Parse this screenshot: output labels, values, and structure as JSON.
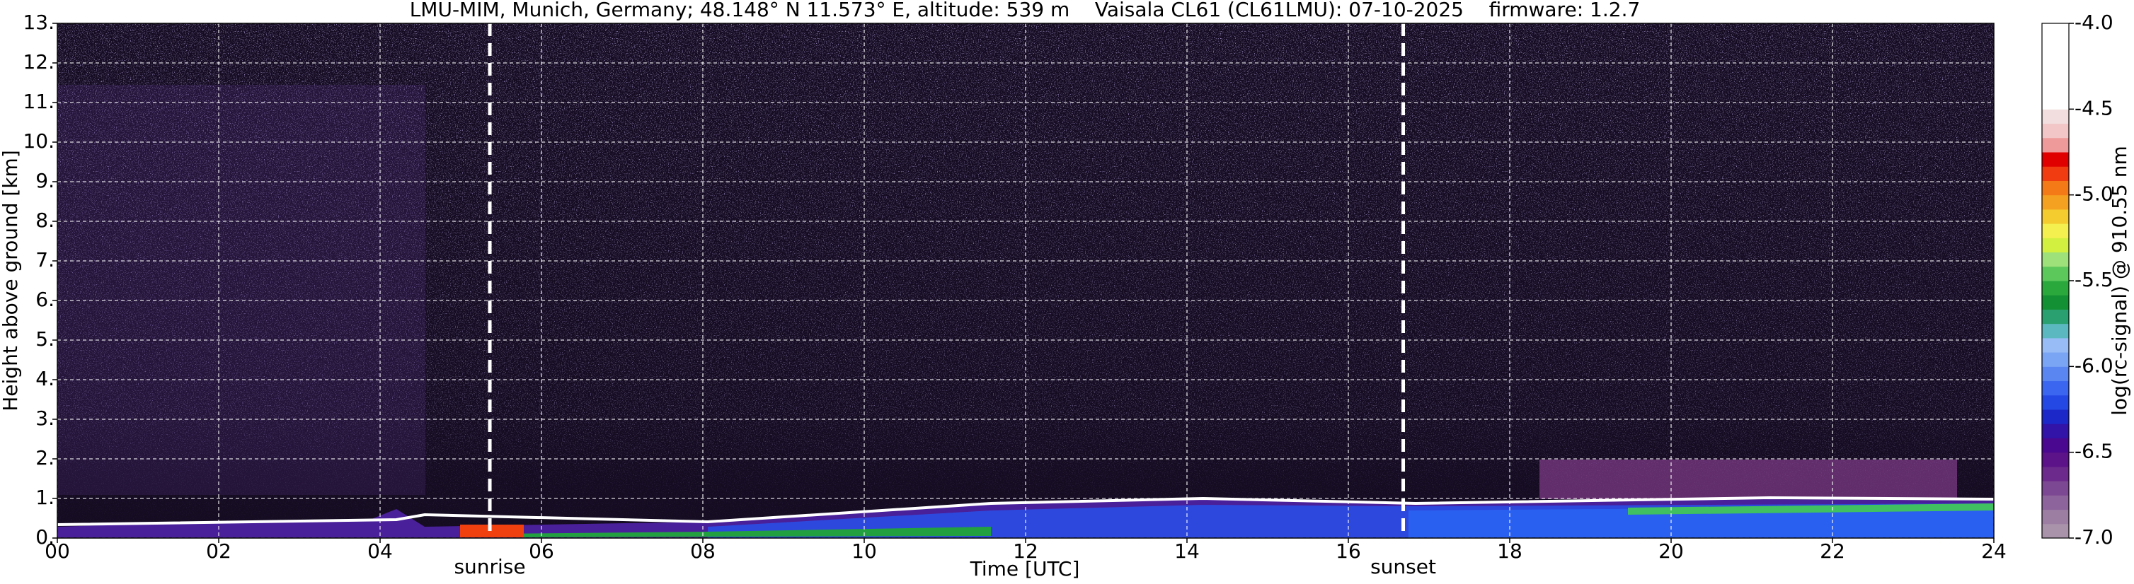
{
  "chart_data": {
    "type": "heatmap",
    "title": "LMU-MIM, Munich, Germany; 48.148° N 11.573° E, altitude: 539 m    Vaisala CL61 (CL61LMU): 07-10-2025    firmware: 1.2.7",
    "xlabel": "Time [UTC]",
    "ylabel": "Height above ground [km]",
    "xlim": [
      0,
      24
    ],
    "xticks": [
      {
        "value": 0,
        "label": "00"
      },
      {
        "value": 2,
        "label": "02"
      },
      {
        "value": 4,
        "label": "04"
      },
      {
        "value": 6,
        "label": "06"
      },
      {
        "value": 8,
        "label": "08"
      },
      10,
      12,
      14,
      16,
      18,
      20,
      22,
      24
    ],
    "ylim": [
      0,
      13
    ],
    "yticks": [
      {
        "value": 0,
        "label": "0."
      },
      {
        "value": 1,
        "label": "1."
      },
      {
        "value": 2,
        "label": "2."
      },
      {
        "value": 3,
        "label": "3."
      },
      {
        "value": 4,
        "label": "4."
      },
      {
        "value": 5,
        "label": "5."
      },
      {
        "value": 6,
        "label": "6."
      },
      {
        "value": 7,
        "label": "7."
      },
      {
        "value": 8,
        "label": "8."
      },
      {
        "value": 9,
        "label": "9."
      },
      {
        "value": 10,
        "label": "10."
      },
      {
        "value": 11,
        "label": "11."
      },
      {
        "value": 12,
        "label": "12."
      },
      {
        "value": 13,
        "label": "13."
      }
    ],
    "grid": true,
    "annotations": [
      {
        "text": "sunrise",
        "x": 5.36
      },
      {
        "text": "sunset",
        "x": 16.68
      }
    ],
    "colorbar": {
      "label": "log(rc-signal) @ 910.55 nm",
      "clim": [
        -7,
        -4
      ],
      "ticks": [
        {
          "value": -7,
          "label": "-7.0"
        },
        -6.5,
        {
          "value": -6,
          "label": "-6.0"
        },
        -5.5,
        {
          "value": -5,
          "label": "-5.0"
        },
        -4.5,
        {
          "value": -4,
          "label": "-4.0"
        }
      ],
      "colors": [
        "#a993ab",
        "#9c7ea3",
        "#8d649b",
        "#7d4893",
        "#6c2a8c",
        "#5c1288",
        "#4a0890",
        "#3214a8",
        "#1c28c8",
        "#2448e4",
        "#3a66f0",
        "#5a86f2",
        "#7aa4f4",
        "#98bcf6",
        "#5cb8c0",
        "#2aa070",
        "#149034",
        "#2aa83c",
        "#5cc85c",
        "#9ee07a",
        "#d2f040",
        "#f4f050",
        "#f4cc30",
        "#f4a020",
        "#f47a18",
        "#f03c10",
        "#e00000",
        "#ee9a9a",
        "#f2c6c6",
        "#f2dede",
        "#ffffff",
        "#ffffff",
        "#ffffff",
        "#ffffff",
        "#ffffff",
        "#ffffff"
      ]
    }
  }
}
